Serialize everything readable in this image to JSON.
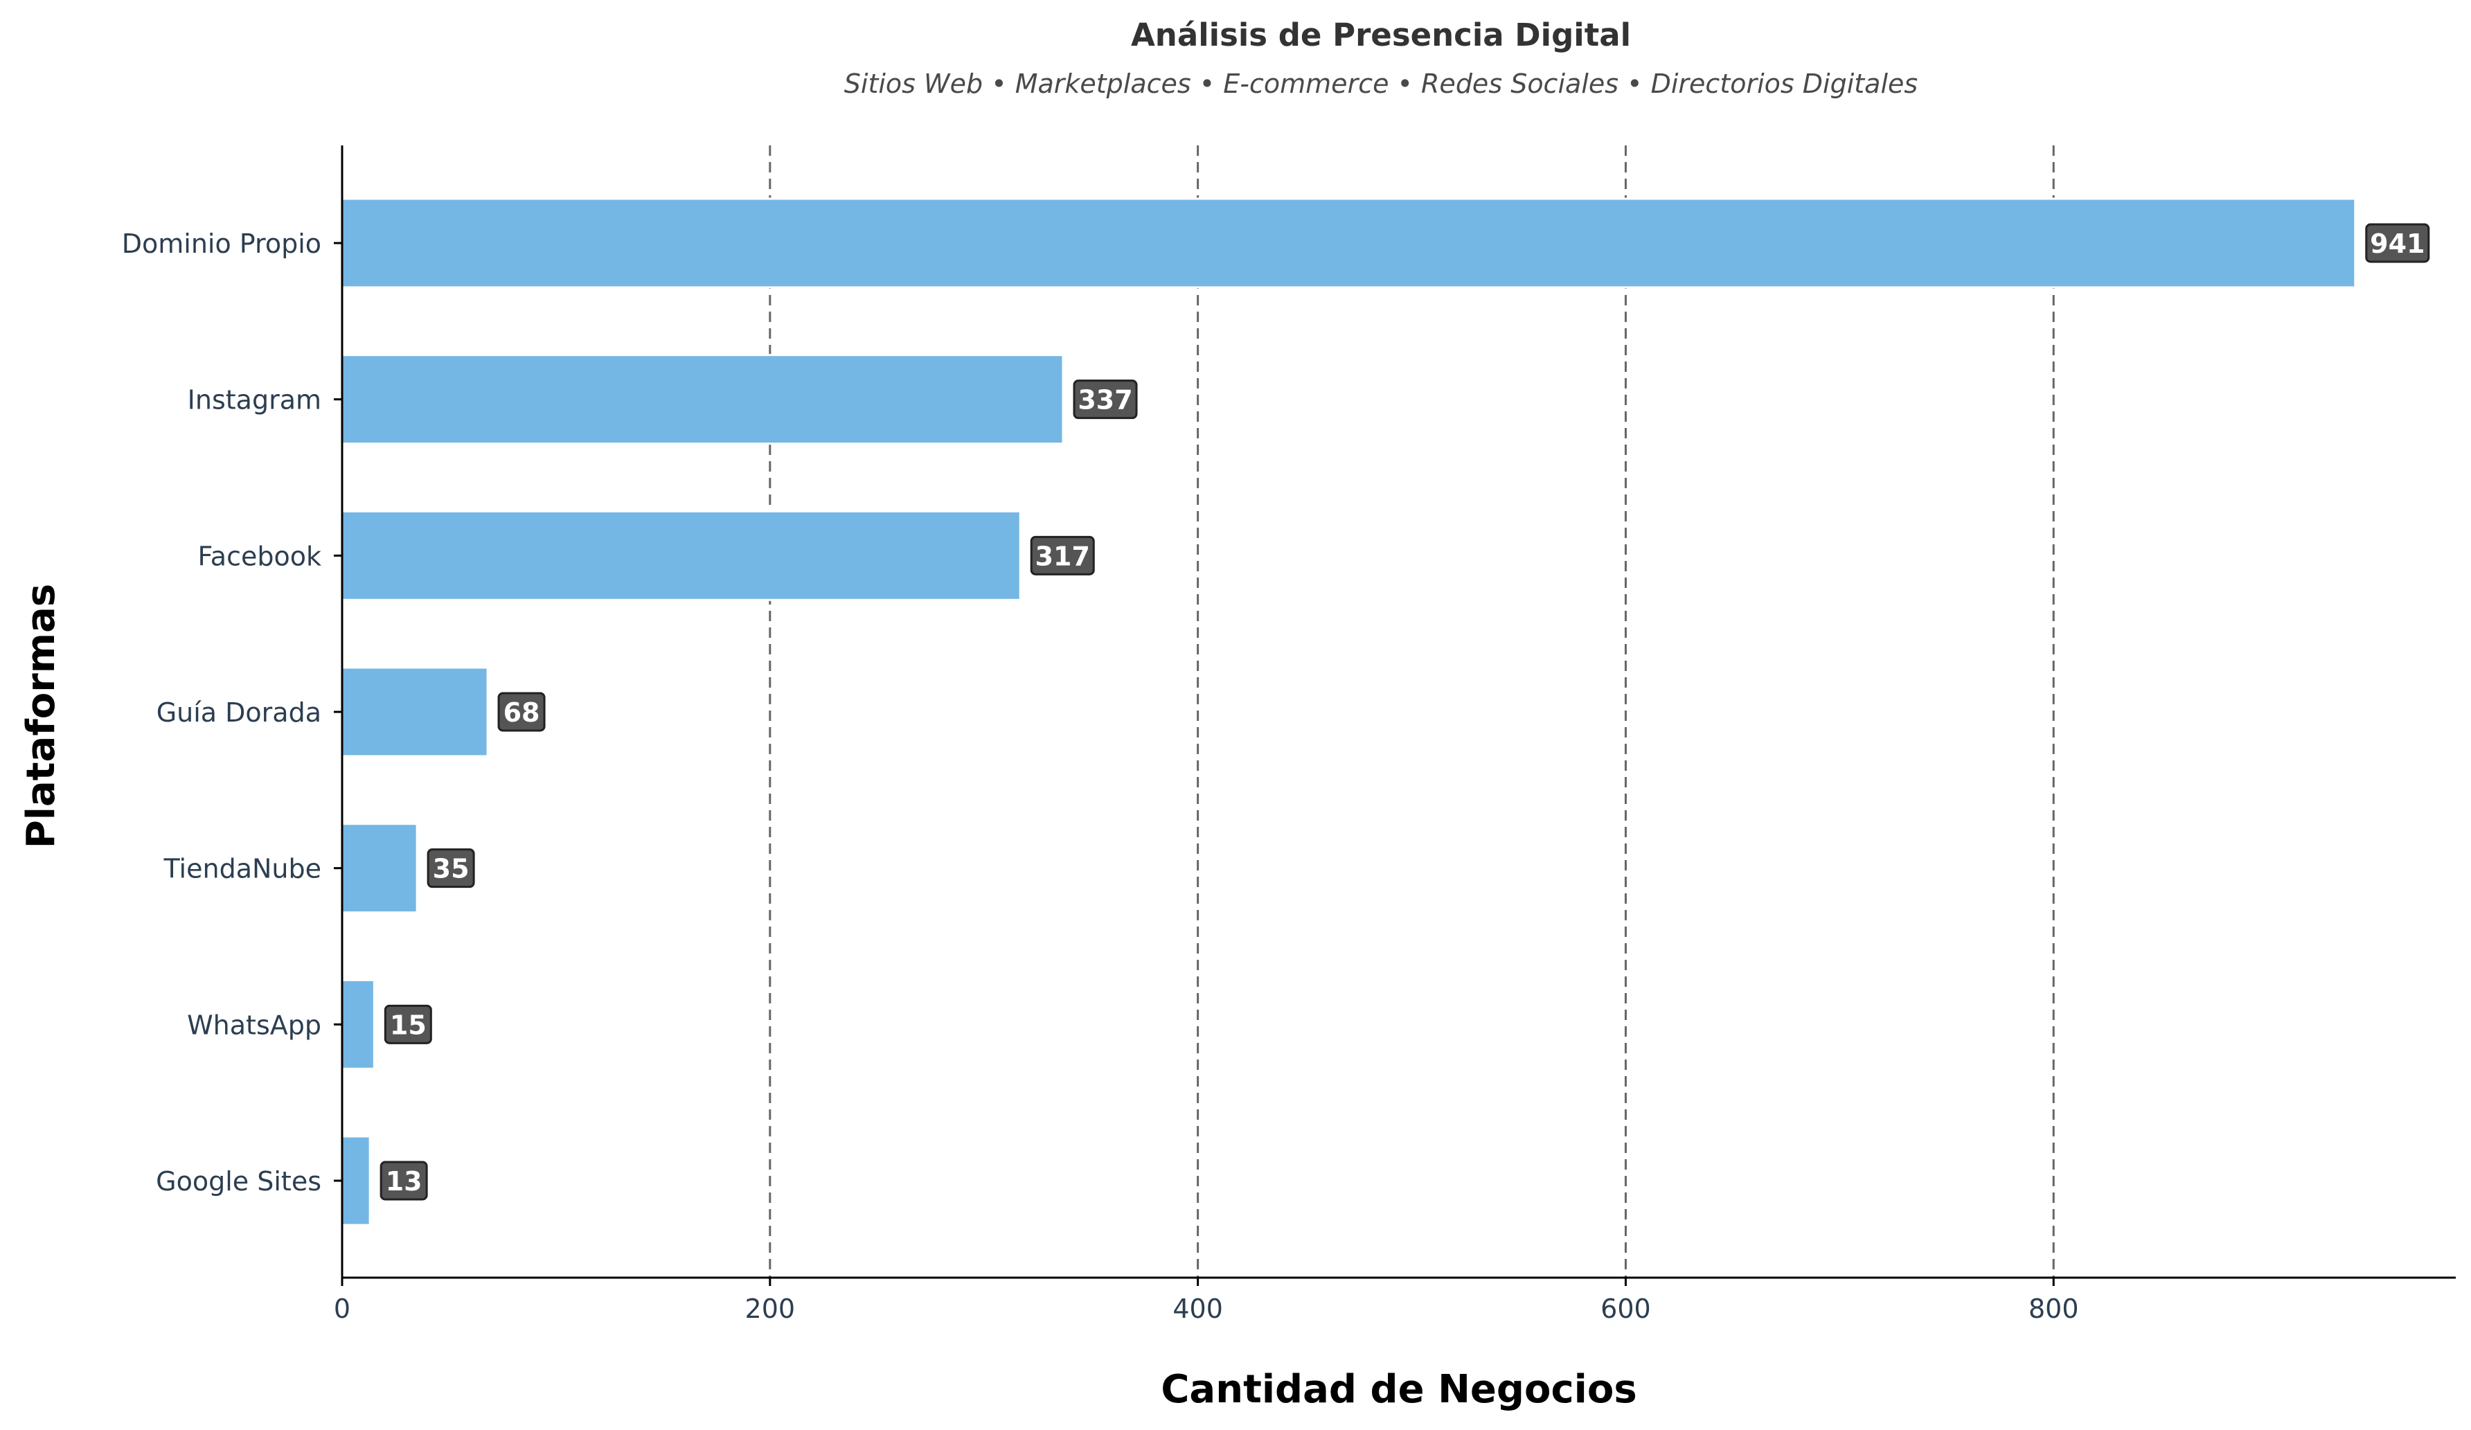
{
  "chart_data": {
    "type": "bar",
    "orientation": "horizontal",
    "title": "Análisis de Presencia Digital",
    "subtitle": "Sitios Web • Marketplaces • E-commerce • Redes Sociales • Directorios Digitales",
    "xlabel": "Cantidad de Negocios",
    "ylabel": "Plataformas",
    "categories": [
      "Dominio Propio",
      "Instagram",
      "Facebook",
      "Guía Dorada",
      "TiendaNube",
      "WhatsApp",
      "Google Sites"
    ],
    "values": [
      941,
      337,
      317,
      68,
      35,
      15,
      13
    ],
    "data_labels": [
      "941",
      "337",
      "317",
      "68",
      "35",
      "15",
      "13"
    ],
    "xlim": [
      0,
      988
    ],
    "xticks": [
      0,
      200,
      400,
      600,
      800
    ],
    "xtick_labels": [
      "0",
      "200",
      "400",
      "600",
      "800"
    ],
    "grid": "x-axis dashed",
    "bar_color": "#74b7e4",
    "label_box_color": "#555555"
  }
}
